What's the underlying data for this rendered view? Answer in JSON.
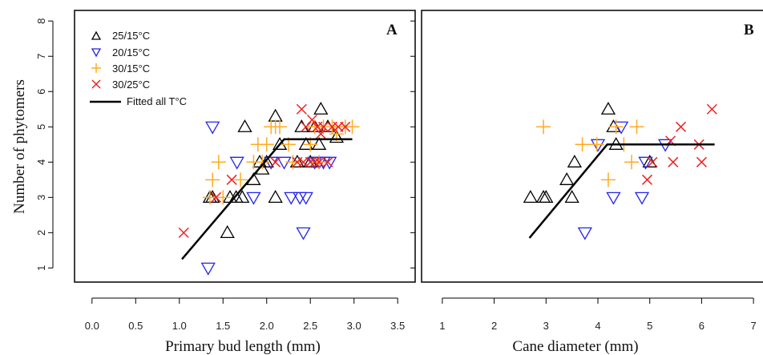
{
  "chart_data": [
    {
      "type": "scatter",
      "panel_label": "A",
      "xlabel": "Primary  bud length  (mm)",
      "ylabel": "Number  of  phytomers",
      "xlim": [
        -0.2,
        3.7
      ],
      "ylim": [
        0.6,
        8.3
      ],
      "xticks": [
        0.0,
        0.5,
        1.0,
        1.5,
        2.0,
        2.5,
        3.0,
        3.5
      ],
      "xtick_labels": [
        "0.0",
        "0.5",
        "1.0",
        "1.5",
        "2.0",
        "2.5",
        "3.0",
        "3.5"
      ],
      "yticks": [
        1,
        2,
        3,
        4,
        5,
        6,
        7,
        8
      ],
      "ytick_labels": [
        "1",
        "2",
        "3",
        "4",
        "5",
        "6",
        "7",
        "8"
      ],
      "legend_position": "top-left",
      "series": [
        {
          "name": "25/15°C",
          "marker": "triangle-up",
          "color": "#000000",
          "x": [
            1.35,
            1.38,
            1.55,
            1.58,
            1.65,
            1.72,
            1.75,
            1.85,
            1.92,
            1.95,
            2.0,
            2.1,
            2.1,
            2.15,
            2.35,
            2.4,
            2.45,
            2.5,
            2.55,
            2.6,
            2.62,
            2.7,
            2.8
          ],
          "y": [
            3.0,
            3.0,
            2.0,
            3.0,
            3.0,
            3.0,
            5.0,
            3.5,
            4.0,
            3.8,
            4.0,
            3.0,
            5.3,
            4.5,
            4.0,
            5.0,
            4.5,
            4.0,
            5.0,
            4.5,
            5.5,
            5.0,
            4.7
          ]
        },
        {
          "name": "20/15°C",
          "marker": "triangle-down",
          "color": "#2222ee",
          "x": [
            1.33,
            1.38,
            1.66,
            1.85,
            2.05,
            2.2,
            2.28,
            2.38,
            2.42,
            2.45,
            2.55,
            2.6,
            2.65,
            2.72
          ],
          "y": [
            1.0,
            5.0,
            4.0,
            3.0,
            4.0,
            4.0,
            3.0,
            3.0,
            2.0,
            3.0,
            4.0,
            4.0,
            4.0,
            4.0
          ]
        },
        {
          "name": "30/15°C",
          "marker": "plus",
          "color": "#ffaa22",
          "x": [
            1.35,
            1.38,
            1.45,
            1.5,
            1.7,
            1.85,
            1.9,
            1.95,
            2.0,
            2.05,
            2.1,
            2.15,
            2.25,
            2.3,
            2.5,
            2.55,
            2.6,
            2.65,
            2.75,
            2.8,
            2.9,
            2.98
          ],
          "y": [
            3.0,
            3.5,
            4.0,
            3.0,
            3.5,
            4.0,
            4.5,
            4.0,
            4.5,
            5.0,
            5.0,
            5.0,
            4.5,
            4.0,
            4.5,
            5.0,
            4.0,
            5.0,
            5.0,
            4.8,
            5.0,
            5.0
          ]
        },
        {
          "name": "30/25°C",
          "marker": "x",
          "color": "#ee2222",
          "x": [
            1.05,
            1.42,
            1.6,
            2.1,
            2.35,
            2.4,
            2.42,
            2.45,
            2.5,
            2.52,
            2.55,
            2.58,
            2.6,
            2.62,
            2.65,
            2.7,
            2.75,
            2.82,
            2.9
          ],
          "y": [
            2.0,
            3.0,
            3.5,
            4.0,
            4.0,
            5.5,
            4.0,
            5.0,
            4.0,
            5.2,
            4.0,
            5.0,
            4.0,
            4.8,
            5.0,
            4.0,
            5.0,
            5.0,
            5.0
          ]
        },
        {
          "name": "Fitted all T°C",
          "type": "line",
          "color": "#000000",
          "x": [
            1.03,
            2.2,
            2.98
          ],
          "y": [
            1.25,
            4.65,
            4.65
          ]
        }
      ]
    },
    {
      "type": "scatter",
      "panel_label": "B",
      "xlabel": "Cane diameter  (mm)",
      "xlim": [
        0.6,
        7.4
      ],
      "ylim": [
        0.6,
        8.3
      ],
      "xticks": [
        1,
        2,
        3,
        4,
        5,
        6,
        7
      ],
      "xtick_labels": [
        "1",
        "2",
        "3",
        "4",
        "5",
        "6",
        "7"
      ],
      "series": [
        {
          "name": "25/15°C",
          "marker": "triangle-up",
          "color": "#000000",
          "x": [
            2.7,
            2.95,
            3.0,
            3.4,
            3.5,
            3.55,
            4.2,
            4.3,
            4.35,
            5.0
          ],
          "y": [
            3.0,
            3.0,
            3.0,
            3.5,
            3.0,
            4.0,
            5.5,
            5.0,
            4.5,
            4.0
          ]
        },
        {
          "name": "20/15°C",
          "marker": "triangle-down",
          "color": "#2222ee",
          "x": [
            3.75,
            4.0,
            4.3,
            4.45,
            4.85,
            4.92,
            5.3
          ],
          "y": [
            2.0,
            4.5,
            3.0,
            5.0,
            3.0,
            4.0,
            4.5
          ]
        },
        {
          "name": "30/15°C",
          "marker": "plus",
          "color": "#ffaa22",
          "x": [
            2.95,
            3.7,
            3.98,
            4.2,
            4.35,
            4.5,
            4.65,
            4.75
          ],
          "y": [
            5.0,
            4.5,
            4.5,
            3.5,
            5.0,
            4.5,
            4.0,
            5.0
          ]
        },
        {
          "name": "30/25°C",
          "marker": "x",
          "color": "#ee2222",
          "x": [
            4.95,
            5.05,
            5.4,
            5.45,
            5.6,
            5.95,
            6.0,
            6.2
          ],
          "y": [
            3.5,
            4.0,
            4.6,
            4.0,
            5.0,
            4.5,
            4.0,
            5.5
          ]
        },
        {
          "name": "Fitted all T°C",
          "type": "line",
          "color": "#000000",
          "x": [
            2.68,
            4.18,
            6.25
          ],
          "y": [
            1.85,
            4.5,
            4.5
          ]
        }
      ]
    }
  ]
}
